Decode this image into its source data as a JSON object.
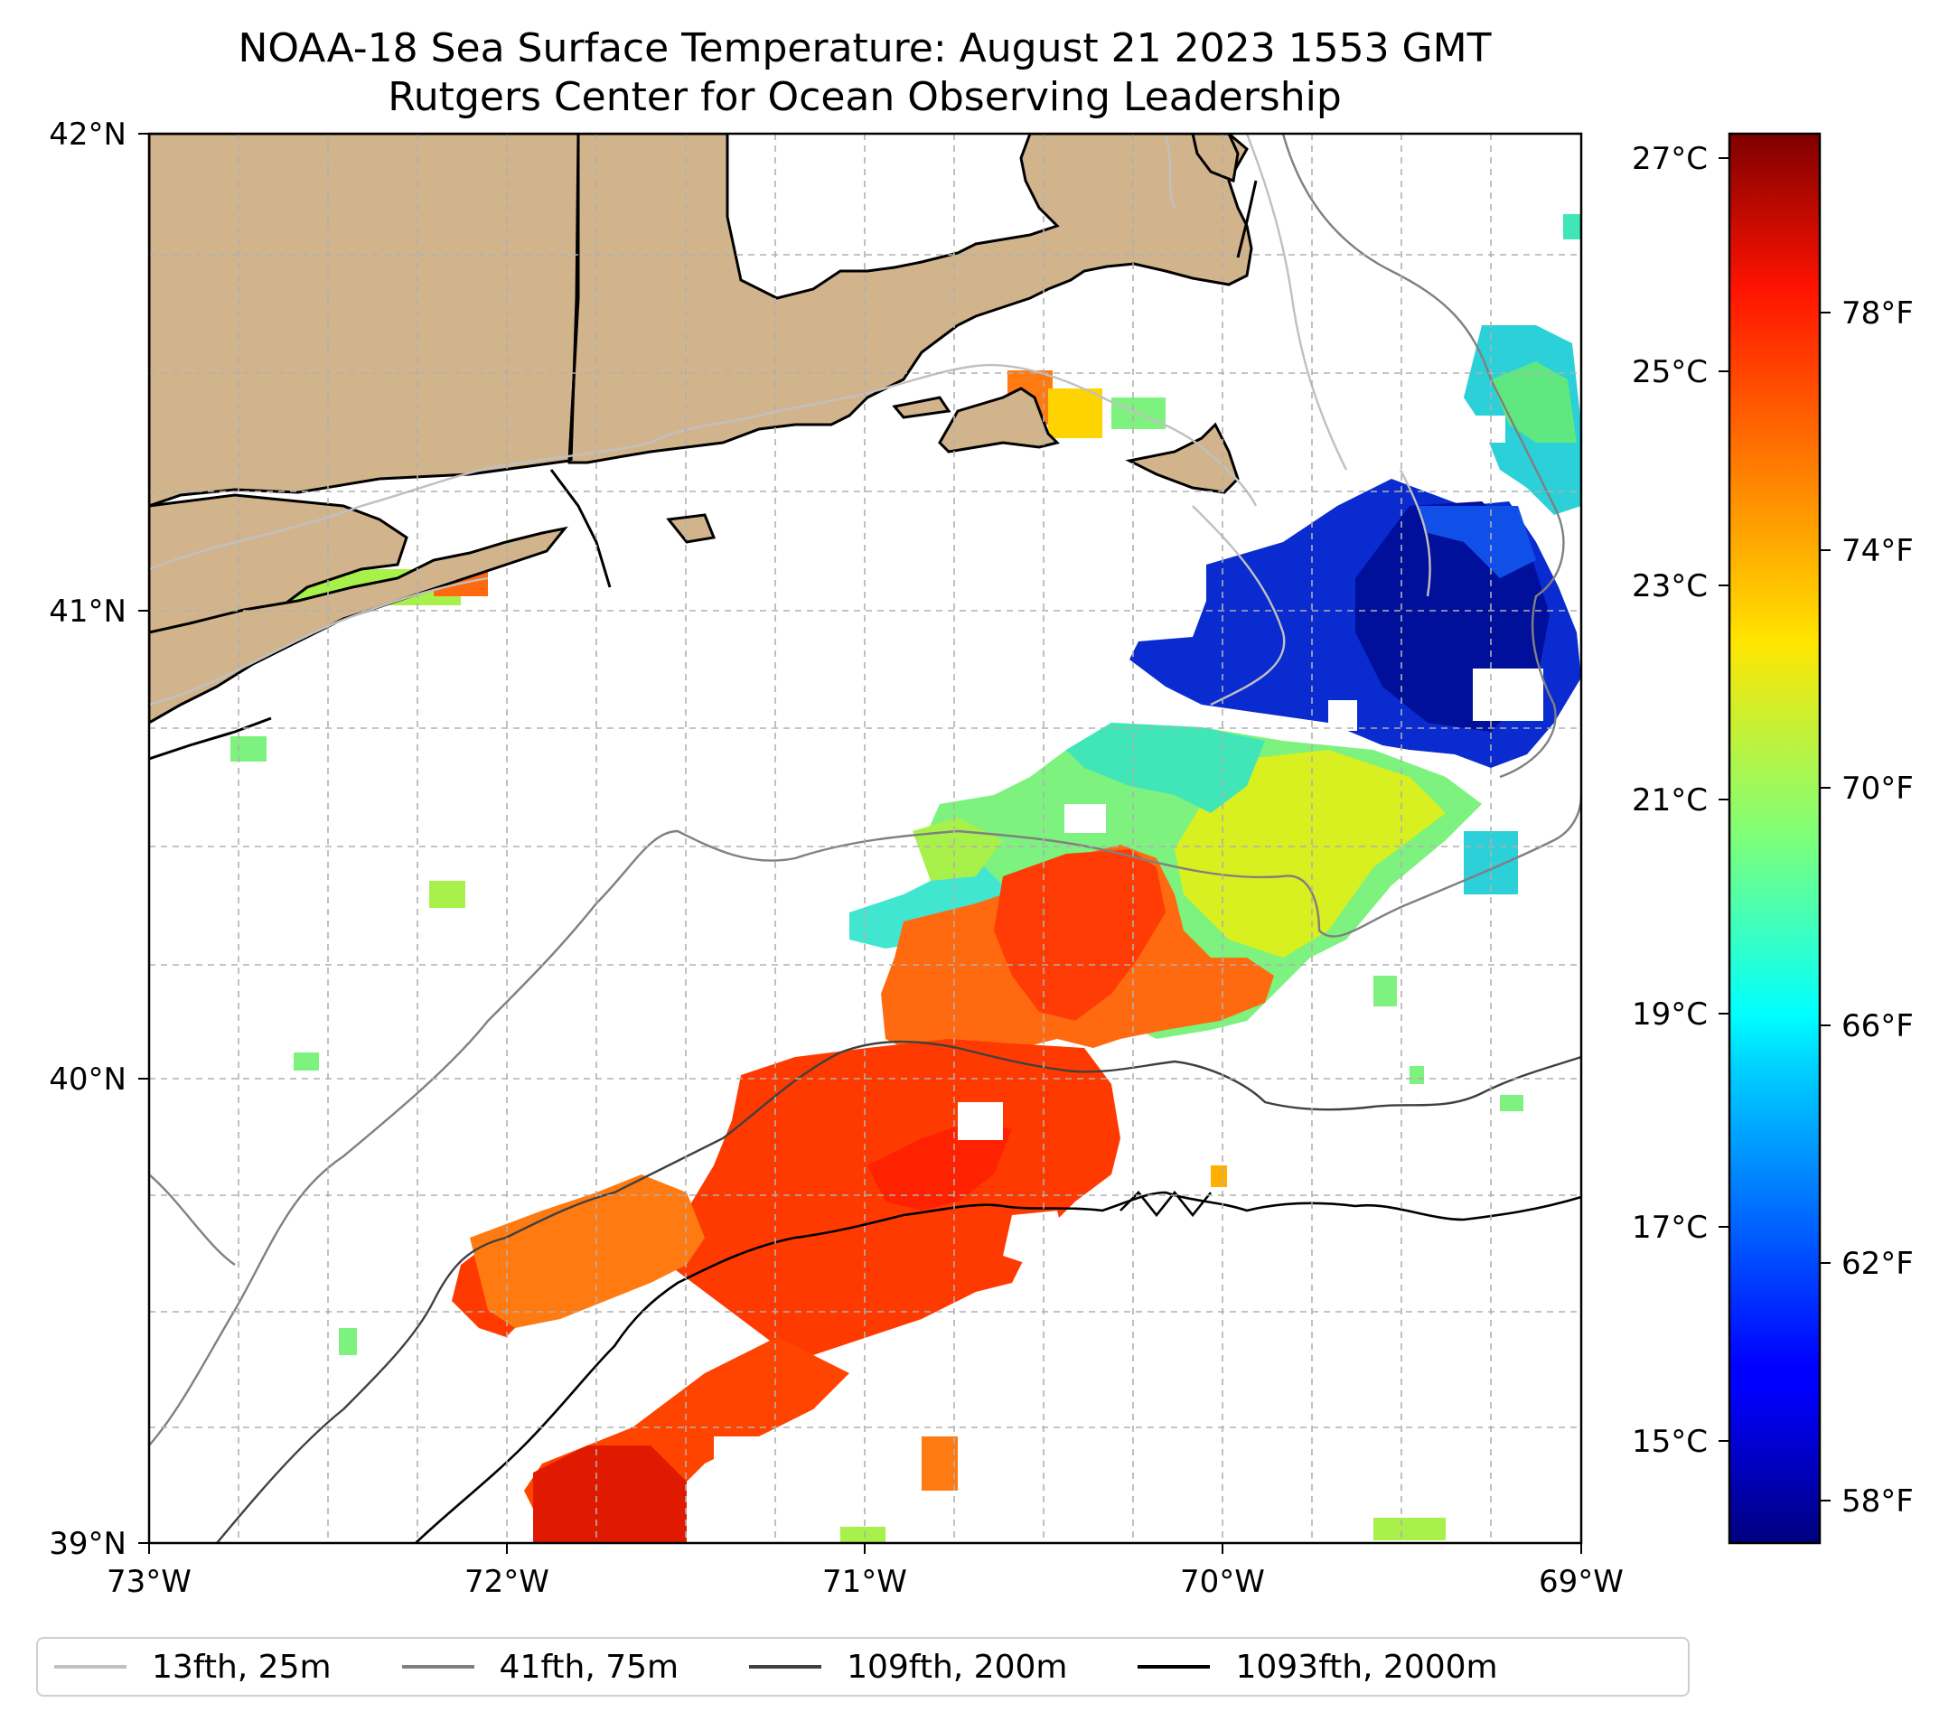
{
  "title": {
    "line1": "NOAA-18 Sea Surface Temperature: August 21 2023 1553 GMT",
    "line2": "Rutgers Center for Ocean Observing Leadership"
  },
  "map": {
    "lat_ticks": [
      "42°N",
      "41°N",
      "40°N",
      "39°N"
    ],
    "lon_ticks": [
      "73°W",
      "72°W",
      "71°W",
      "70°W",
      "69°W"
    ],
    "lat_range": [
      39,
      42
    ],
    "lon_range": [
      -73,
      -69
    ]
  },
  "colorbar": {
    "colormap": "jet",
    "celsius_labels": [
      "27°C",
      "25°C",
      "23°C",
      "21°C",
      "19°C",
      "17°C",
      "15°C"
    ],
    "fahrenheit_labels": [
      "78°F",
      "74°F",
      "70°F",
      "66°F",
      "62°F",
      "58°F"
    ]
  },
  "legend": {
    "items": [
      {
        "label": "13fth, 25m",
        "color": "#c0c0c0"
      },
      {
        "label": "41fth, 75m",
        "color": "#808080"
      },
      {
        "label": "109fth, 200m",
        "color": "#404040"
      },
      {
        "label": "1093fth, 2000m",
        "color": "#000000"
      }
    ]
  },
  "colors": {
    "land": "#d2b48c",
    "cold": "#00008f",
    "warm": "#ff3a00"
  }
}
